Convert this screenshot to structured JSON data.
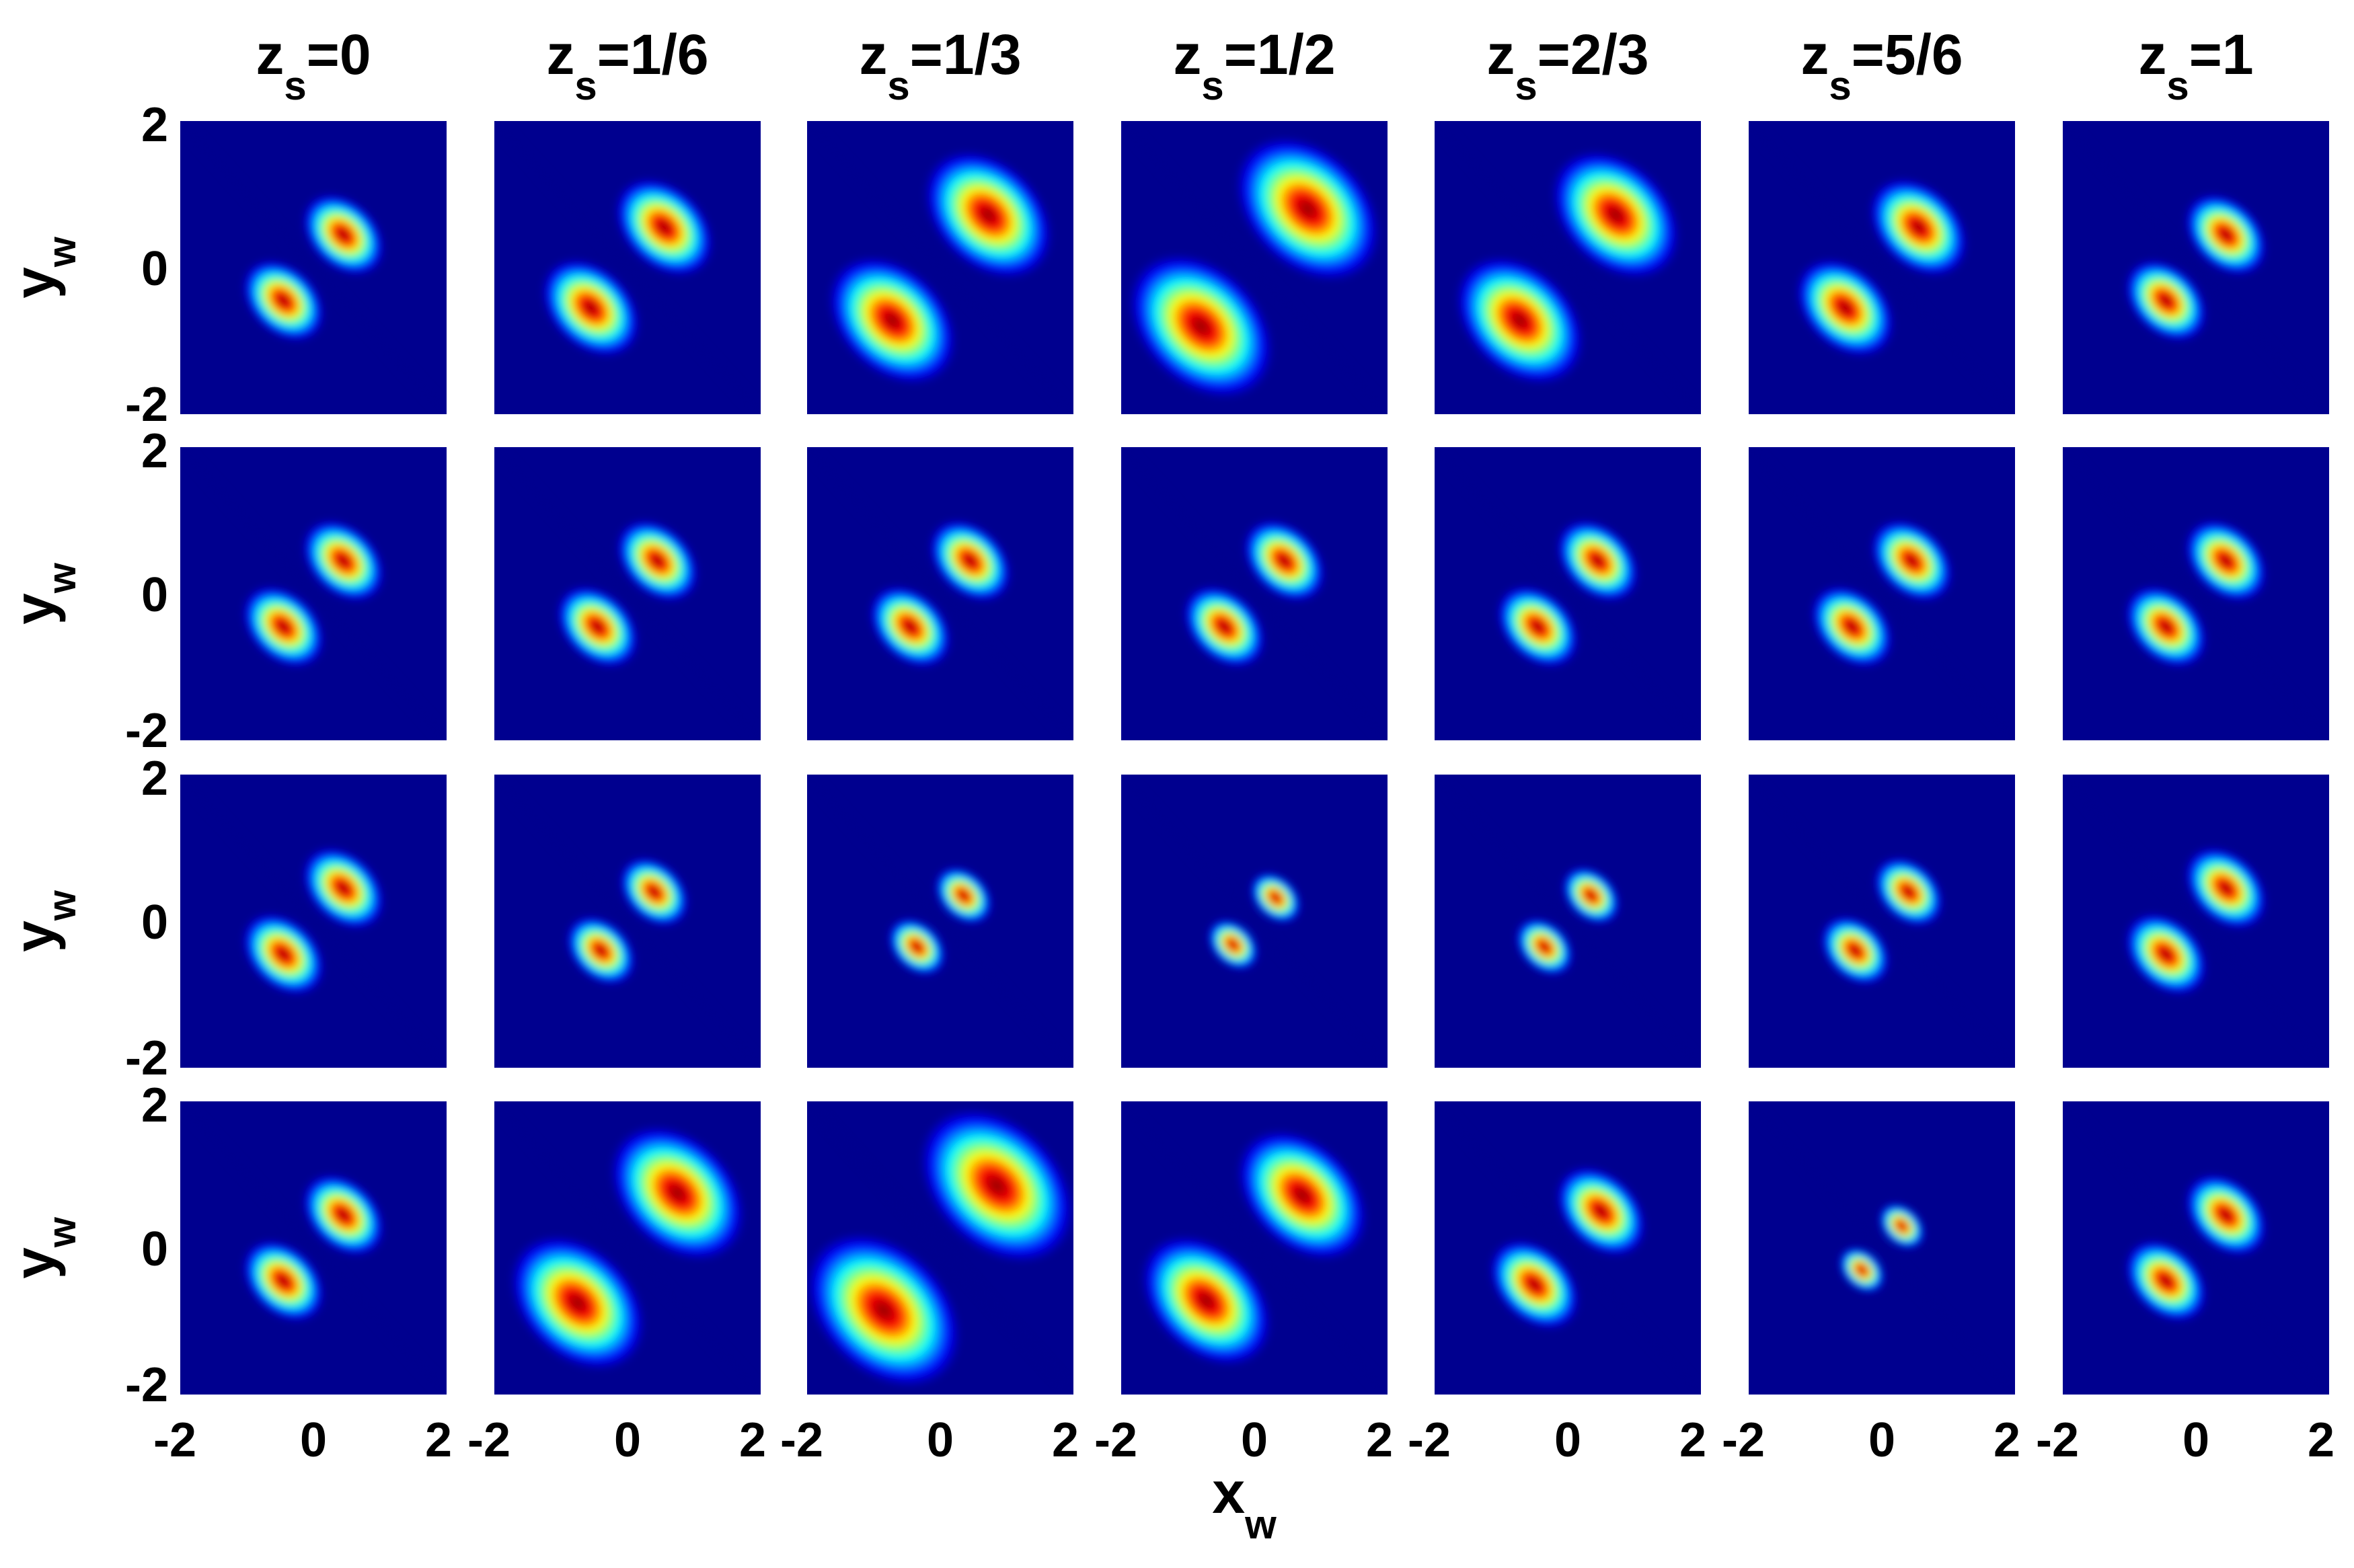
{
  "figure": {
    "column_labels": [
      {
        "var": "z",
        "sub": "s",
        "val": "=0"
      },
      {
        "var": "z",
        "sub": "s",
        "val": "=1/6"
      },
      {
        "var": "z",
        "sub": "s",
        "val": "=1/3"
      },
      {
        "var": "z",
        "sub": "s",
        "val": "=1/2"
      },
      {
        "var": "z",
        "sub": "s",
        "val": "=2/3"
      },
      {
        "var": "z",
        "sub": "s",
        "val": "=5/6"
      },
      {
        "var": "z",
        "sub": "s",
        "val": "=1"
      }
    ],
    "ylabel": {
      "var": "y",
      "sub": "w"
    },
    "xlabel": {
      "var": "x",
      "sub": "w"
    },
    "colormap": [
      "#00008f",
      "#0000ff",
      "#00ffff",
      "#ffff00",
      "#ff0000",
      "#800000"
    ]
  },
  "chart_data": {
    "type": "heatmap",
    "description_of_grid": "4 rows x 7 columns of small-multiple intensity maps",
    "xlim": [
      -2,
      2
    ],
    "ylim": [
      -2,
      2
    ],
    "xticks": [
      "-2",
      "0",
      "2"
    ],
    "yticks": [
      "2",
      "0",
      "-2"
    ],
    "columns": [
      "z_s=0",
      "z_s=1/6",
      "z_s=1/3",
      "z_s=1/2",
      "z_s=2/3",
      "z_s=5/6",
      "z_s=1"
    ],
    "lobe_center_offset": [
      [
        0.45,
        0.55,
        0.72,
        0.8,
        0.72,
        0.55,
        0.45
      ],
      [
        0.45,
        0.45,
        0.45,
        0.45,
        0.45,
        0.45,
        0.45
      ],
      [
        0.45,
        0.4,
        0.35,
        0.32,
        0.35,
        0.4,
        0.45
      ],
      [
        0.45,
        0.75,
        0.85,
        0.72,
        0.5,
        0.3,
        0.45
      ]
    ],
    "lobe_width_along_axis": [
      [
        0.35,
        0.42,
        0.55,
        0.62,
        0.55,
        0.42,
        0.35
      ],
      [
        0.35,
        0.35,
        0.35,
        0.35,
        0.35,
        0.35,
        0.35
      ],
      [
        0.35,
        0.3,
        0.25,
        0.22,
        0.25,
        0.3,
        0.35
      ],
      [
        0.35,
        0.58,
        0.66,
        0.55,
        0.38,
        0.2,
        0.35
      ]
    ],
    "lobe_width_across_axis": [
      [
        0.5,
        0.6,
        0.78,
        0.88,
        0.78,
        0.6,
        0.5
      ],
      [
        0.5,
        0.5,
        0.5,
        0.5,
        0.5,
        0.5,
        0.5
      ],
      [
        0.5,
        0.42,
        0.35,
        0.31,
        0.35,
        0.42,
        0.5
      ],
      [
        0.5,
        0.82,
        0.94,
        0.8,
        0.55,
        0.28,
        0.5
      ]
    ]
  }
}
